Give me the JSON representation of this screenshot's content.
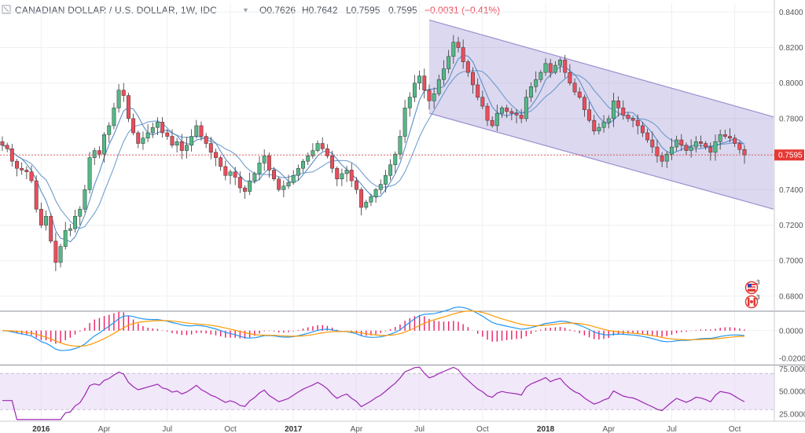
{
  "header": {
    "title": "CANADIAN DOLLAR / U.S. DOLLAR, 1W, IDC",
    "open": "O0.7626",
    "high": "H0.7642",
    "low": "L0.7595",
    "close": "0.7595",
    "change": "−0.0031 (−0.41%)"
  },
  "colors": {
    "up": "#53b987",
    "down": "#eb4d5c",
    "ma_fast": "#5b8ec7",
    "ma_slow": "#5b8ec7",
    "channel_fill": "#9c8fd0",
    "channel_line": "#9c8fd0",
    "macd_line": "#2196f3",
    "signal_line": "#ff9800",
    "histogram": "#e91e63",
    "rsi_line": "#9c27b0",
    "rsi_band": "#e6d6f5",
    "last_price": "#e53935"
  },
  "badges": {
    "us_count": "3",
    "ca_count": "3",
    "us_icon": "us-flag-icon",
    "ca_icon": "canada-flag-icon"
  },
  "chart_data": [
    {
      "type": "candlestick",
      "title": "CANADIAN DOLLAR / U.S. DOLLAR, 1W, IDC",
      "ylim": [
        0.672,
        0.845
      ],
      "yticks": [
        0.68,
        0.7,
        0.72,
        0.74,
        0.76,
        0.78,
        0.8,
        0.82,
        0.84
      ],
      "ytick_labels": [
        "0.6800",
        "0.7000",
        "0.7200",
        "0.7400",
        "0.7600",
        "0.7800",
        "0.8000",
        "0.8200",
        "0.8400"
      ],
      "last_price": 0.7595,
      "last_price_label": "0.7595",
      "x_labels": [
        {
          "label": "2016",
          "index": 8,
          "major": true
        },
        {
          "label": "Apr",
          "index": 21,
          "major": false
        },
        {
          "label": "Jul",
          "index": 34,
          "major": false
        },
        {
          "label": "Oct",
          "index": 47,
          "major": false
        },
        {
          "label": "2017",
          "index": 60,
          "major": true
        },
        {
          "label": "Apr",
          "index": 73,
          "major": false
        },
        {
          "label": "Jul",
          "index": 86,
          "major": false
        },
        {
          "label": "Oct",
          "index": 99,
          "major": false
        },
        {
          "label": "2018",
          "index": 112,
          "major": true
        },
        {
          "label": "Apr",
          "index": 125,
          "major": false
        },
        {
          "label": "Jul",
          "index": 138,
          "major": false
        },
        {
          "label": "Oct",
          "index": 151,
          "major": false
        }
      ],
      "close": [
        0.765,
        0.763,
        0.756,
        0.752,
        0.751,
        0.75,
        0.745,
        0.729,
        0.72,
        0.725,
        0.711,
        0.699,
        0.708,
        0.717,
        0.718,
        0.725,
        0.729,
        0.74,
        0.758,
        0.762,
        0.76,
        0.771,
        0.776,
        0.786,
        0.796,
        0.793,
        0.78,
        0.772,
        0.766,
        0.769,
        0.772,
        0.775,
        0.778,
        0.772,
        0.77,
        0.765,
        0.767,
        0.762,
        0.765,
        0.77,
        0.776,
        0.77,
        0.766,
        0.761,
        0.758,
        0.753,
        0.748,
        0.75,
        0.747,
        0.741,
        0.739,
        0.745,
        0.749,
        0.755,
        0.759,
        0.751,
        0.746,
        0.74,
        0.742,
        0.744,
        0.748,
        0.752,
        0.756,
        0.759,
        0.762,
        0.766,
        0.763,
        0.759,
        0.752,
        0.746,
        0.749,
        0.751,
        0.745,
        0.74,
        0.73,
        0.733,
        0.736,
        0.74,
        0.743,
        0.748,
        0.754,
        0.76,
        0.77,
        0.786,
        0.792,
        0.8,
        0.804,
        0.796,
        0.79,
        0.794,
        0.802,
        0.808,
        0.815,
        0.823,
        0.82,
        0.812,
        0.806,
        0.799,
        0.792,
        0.787,
        0.779,
        0.776,
        0.783,
        0.786,
        0.784,
        0.783,
        0.782,
        0.78,
        0.792,
        0.798,
        0.802,
        0.806,
        0.811,
        0.806,
        0.81,
        0.813,
        0.806,
        0.8,
        0.795,
        0.792,
        0.785,
        0.779,
        0.773,
        0.775,
        0.778,
        0.78,
        0.79,
        0.786,
        0.782,
        0.78,
        0.779,
        0.776,
        0.772,
        0.768,
        0.764,
        0.759,
        0.756,
        0.76,
        0.764,
        0.768,
        0.765,
        0.762,
        0.764,
        0.767,
        0.766,
        0.764,
        0.761,
        0.767,
        0.771,
        0.77,
        0.769,
        0.766,
        0.7626,
        0.7595
      ],
      "macd": {
        "zero_label": "0.0000",
        "yticks": [
          0.0,
          -0.02
        ],
        "ytick_labels": [
          "0.0000",
          "-0.0200"
        ],
        "ylim": [
          -0.024,
          0.0135
        ]
      },
      "rsi": {
        "yticks": [
          25,
          50,
          75
        ],
        "ytick_labels": [
          "25.0000",
          "50.0000",
          "75.0000"
        ],
        "upper_band": 70,
        "lower_band": 30,
        "ylim": [
          18,
          78
        ]
      },
      "channel": {
        "upper": [
          {
            "index": 88,
            "value": 0.8355
          },
          {
            "index": 159,
            "value": 0.781
          }
        ],
        "lower": [
          {
            "index": 88,
            "value": 0.783
          },
          {
            "index": 159,
            "value": 0.729
          }
        ]
      }
    }
  ]
}
